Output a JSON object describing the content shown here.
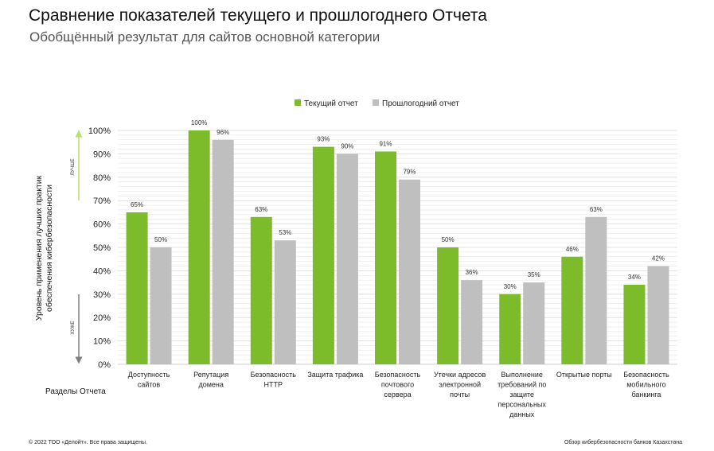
{
  "header": {
    "title": "Сравнение показателей текущего и прошлогоднего Отчета",
    "subtitle": "Обобщённый результат для сайтов основной категории"
  },
  "footer": {
    "copyright": "© 2022 ТОО «Делойт». Все права защищены.",
    "report_name": "Обзор кибербезопасности банков Казахстана"
  },
  "colors": {
    "current": "#7cbc2a",
    "previous": "#bfbfbf",
    "grid": "#d9d9d9",
    "arrow_better": "#b6e36a",
    "arrow_worse": "#7f7f7f"
  },
  "chart_data": {
    "type": "bar",
    "title": "",
    "xlabel": "Разделы Отчета",
    "ylabel": "Уровень применения лучших практик обеспечения кибербезопасности",
    "ylim": [
      0,
      100
    ],
    "y_ticks": [
      "0%",
      "10%",
      "20%",
      "30%",
      "40%",
      "50%",
      "60%",
      "70%",
      "80%",
      "90%",
      "100%"
    ],
    "grid": true,
    "legend_position": "top-center",
    "better_label": "ЛУЧШЕ",
    "worse_label": "ХУЖЕ",
    "categories": [
      [
        "Доступность",
        "сайтов"
      ],
      [
        "Репутация",
        "домена"
      ],
      [
        "Безопасность",
        "HTTP"
      ],
      [
        "Защита трафика"
      ],
      [
        "Безопасность",
        "почтового",
        "сервера"
      ],
      [
        "Утечки адресов",
        "электронной",
        "почты"
      ],
      [
        "Выполнение",
        "требований по",
        "защите",
        "персональных",
        "данных"
      ],
      [
        "Открытые порты"
      ],
      [
        "Безопасность",
        "мобильного",
        "банкинга"
      ]
    ],
    "series": [
      {
        "name": "Текущий отчет",
        "values": [
          65,
          100,
          63,
          93,
          91,
          50,
          30,
          46,
          34
        ],
        "labels": [
          "65%",
          "100%",
          "63%",
          "93%",
          "91%",
          "50%",
          "30%",
          "46%",
          "34%"
        ]
      },
      {
        "name": "Прошлогодний отчет",
        "values": [
          50,
          96,
          53,
          90,
          79,
          36,
          35,
          63,
          42
        ],
        "labels": [
          "50%",
          "96%",
          "53%",
          "90%",
          "79%",
          "36%",
          "35%",
          "63%",
          "42%"
        ]
      }
    ]
  }
}
